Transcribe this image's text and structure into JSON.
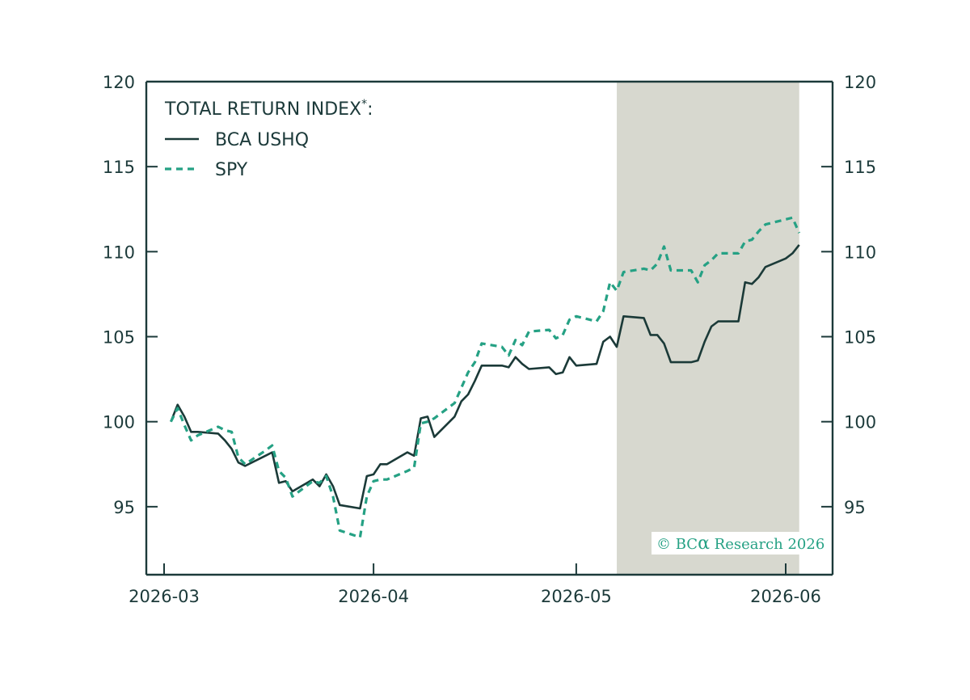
{
  "chart_data": {
    "type": "line",
    "title": "",
    "legend_title": "TOTAL RETURN INDEX",
    "legend_title_mark": "*",
    "legend_title_suffix": ":",
    "legend_position": "top-left",
    "x_ticks": [
      "2026-03",
      "2026-04",
      "2026-05",
      "2026-06"
    ],
    "x_range": [
      "2026-02-26",
      "2026-06-07"
    ],
    "y_ticks": [
      95,
      100,
      105,
      110,
      115,
      120
    ],
    "y_tick_labels": [
      "95",
      "100",
      "105",
      "110",
      "115",
      "120"
    ],
    "ylim": [
      91,
      120
    ],
    "grid": false,
    "shaded_region": {
      "start": "2026-05-07",
      "end": "2026-06-03",
      "color": "#d7d8cf"
    },
    "series": [
      {
        "name": "BCA USHQ",
        "color": "#1b3a38",
        "style": "solid",
        "points": [
          [
            "2026-03-02",
            100.0
          ],
          [
            "2026-03-03",
            101.0
          ],
          [
            "2026-03-04",
            100.3
          ],
          [
            "2026-03-05",
            99.4
          ],
          [
            "2026-03-06",
            99.4
          ],
          [
            "2026-03-09",
            99.3
          ],
          [
            "2026-03-10",
            98.9
          ],
          [
            "2026-03-11",
            98.4
          ],
          [
            "2026-03-12",
            97.6
          ],
          [
            "2026-03-13",
            97.4
          ],
          [
            "2026-03-16",
            98.0
          ],
          [
            "2026-03-17",
            98.2
          ],
          [
            "2026-03-18",
            96.4
          ],
          [
            "2026-03-19",
            96.5
          ],
          [
            "2026-03-20",
            95.9
          ],
          [
            "2026-03-23",
            96.6
          ],
          [
            "2026-03-24",
            96.2
          ],
          [
            "2026-03-25",
            96.9
          ],
          [
            "2026-03-26",
            96.2
          ],
          [
            "2026-03-27",
            95.1
          ],
          [
            "2026-03-30",
            94.9
          ],
          [
            "2026-03-31",
            96.8
          ],
          [
            "2026-04-01",
            96.9
          ],
          [
            "2026-04-02",
            97.5
          ],
          [
            "2026-04-03",
            97.5
          ],
          [
            "2026-04-06",
            98.2
          ],
          [
            "2026-04-07",
            98.0
          ],
          [
            "2026-04-08",
            100.2
          ],
          [
            "2026-04-09",
            100.3
          ],
          [
            "2026-04-10",
            99.1
          ],
          [
            "2026-04-13",
            100.3
          ],
          [
            "2026-04-14",
            101.2
          ],
          [
            "2026-04-15",
            101.6
          ],
          [
            "2026-04-16",
            102.4
          ],
          [
            "2026-04-17",
            103.3
          ],
          [
            "2026-04-20",
            103.3
          ],
          [
            "2026-04-21",
            103.2
          ],
          [
            "2026-04-22",
            103.8
          ],
          [
            "2026-04-23",
            103.4
          ],
          [
            "2026-04-24",
            103.1
          ],
          [
            "2026-04-27",
            103.2
          ],
          [
            "2026-04-28",
            102.8
          ],
          [
            "2026-04-29",
            102.9
          ],
          [
            "2026-04-30",
            103.8
          ],
          [
            "2026-05-01",
            103.3
          ],
          [
            "2026-05-04",
            103.4
          ],
          [
            "2026-05-05",
            104.7
          ],
          [
            "2026-05-06",
            105.0
          ],
          [
            "2026-05-07",
            104.4
          ],
          [
            "2026-05-08",
            106.2
          ],
          [
            "2026-05-11",
            106.1
          ],
          [
            "2026-05-12",
            105.1
          ],
          [
            "2026-05-13",
            105.1
          ],
          [
            "2026-05-14",
            104.6
          ],
          [
            "2026-05-15",
            103.5
          ],
          [
            "2026-05-18",
            103.5
          ],
          [
            "2026-05-19",
            103.6
          ],
          [
            "2026-05-20",
            104.7
          ],
          [
            "2026-05-21",
            105.6
          ],
          [
            "2026-05-22",
            105.9
          ],
          [
            "2026-05-25",
            105.9
          ],
          [
            "2026-05-26",
            108.2
          ],
          [
            "2026-05-27",
            108.1
          ],
          [
            "2026-05-28",
            108.5
          ],
          [
            "2026-05-29",
            109.1
          ],
          [
            "2026-06-01",
            109.6
          ],
          [
            "2026-06-02",
            109.9
          ],
          [
            "2026-06-03",
            110.4
          ]
        ]
      },
      {
        "name": "SPY",
        "color": "#25a184",
        "style": "dashed",
        "points": [
          [
            "2026-03-02",
            100.0
          ],
          [
            "2026-03-03",
            100.8
          ],
          [
            "2026-03-04",
            99.8
          ],
          [
            "2026-03-05",
            98.9
          ],
          [
            "2026-03-06",
            99.2
          ],
          [
            "2026-03-09",
            99.7
          ],
          [
            "2026-03-10",
            99.5
          ],
          [
            "2026-03-11",
            99.4
          ],
          [
            "2026-03-12",
            97.9
          ],
          [
            "2026-03-13",
            97.5
          ],
          [
            "2026-03-16",
            98.3
          ],
          [
            "2026-03-17",
            98.6
          ],
          [
            "2026-03-18",
            97.1
          ],
          [
            "2026-03-19",
            96.7
          ],
          [
            "2026-03-20",
            95.6
          ],
          [
            "2026-03-23",
            96.5
          ],
          [
            "2026-03-24",
            96.4
          ],
          [
            "2026-03-25",
            96.8
          ],
          [
            "2026-03-26",
            95.6
          ],
          [
            "2026-03-27",
            93.6
          ],
          [
            "2026-03-30",
            93.2
          ],
          [
            "2026-03-31",
            95.6
          ],
          [
            "2026-04-01",
            96.5
          ],
          [
            "2026-04-02",
            96.6
          ],
          [
            "2026-04-03",
            96.6
          ],
          [
            "2026-04-06",
            97.1
          ],
          [
            "2026-04-07",
            97.3
          ],
          [
            "2026-04-08",
            99.9
          ],
          [
            "2026-04-09",
            100.0
          ],
          [
            "2026-04-10",
            100.2
          ],
          [
            "2026-04-13",
            101.1
          ],
          [
            "2026-04-14",
            102.0
          ],
          [
            "2026-04-15",
            102.9
          ],
          [
            "2026-04-16",
            103.5
          ],
          [
            "2026-04-17",
            104.6
          ],
          [
            "2026-04-20",
            104.4
          ],
          [
            "2026-04-21",
            103.9
          ],
          [
            "2026-04-22",
            104.8
          ],
          [
            "2026-04-23",
            104.5
          ],
          [
            "2026-04-24",
            105.3
          ],
          [
            "2026-04-27",
            105.4
          ],
          [
            "2026-04-28",
            104.9
          ],
          [
            "2026-04-29",
            105.1
          ],
          [
            "2026-04-30",
            106.0
          ],
          [
            "2026-05-01",
            106.2
          ],
          [
            "2026-05-04",
            105.9
          ],
          [
            "2026-05-05",
            106.5
          ],
          [
            "2026-05-06",
            108.2
          ],
          [
            "2026-05-07",
            107.7
          ],
          [
            "2026-05-08",
            108.8
          ],
          [
            "2026-05-11",
            109.0
          ],
          [
            "2026-05-12",
            108.9
          ],
          [
            "2026-05-13",
            109.3
          ],
          [
            "2026-05-14",
            110.3
          ],
          [
            "2026-05-15",
            108.9
          ],
          [
            "2026-05-18",
            108.9
          ],
          [
            "2026-05-19",
            108.2
          ],
          [
            "2026-05-20",
            109.2
          ],
          [
            "2026-05-21",
            109.5
          ],
          [
            "2026-05-22",
            109.9
          ],
          [
            "2026-05-25",
            109.9
          ],
          [
            "2026-05-26",
            110.6
          ],
          [
            "2026-05-27",
            110.7
          ],
          [
            "2026-05-28",
            111.2
          ],
          [
            "2026-05-29",
            111.6
          ],
          [
            "2026-06-01",
            111.9
          ],
          [
            "2026-06-02",
            112.0
          ],
          [
            "2026-06-03",
            111.1
          ]
        ]
      }
    ]
  },
  "credit": {
    "prefix": "© BC",
    "alpha": "α",
    "suffix": " Research 2026"
  },
  "colors": {
    "axis": "#1c3a3a",
    "text": "#1c3a3a",
    "shade": "#d7d8cf",
    "ushq": "#1b3a38",
    "spy": "#25a184",
    "credit": "#25a184"
  }
}
